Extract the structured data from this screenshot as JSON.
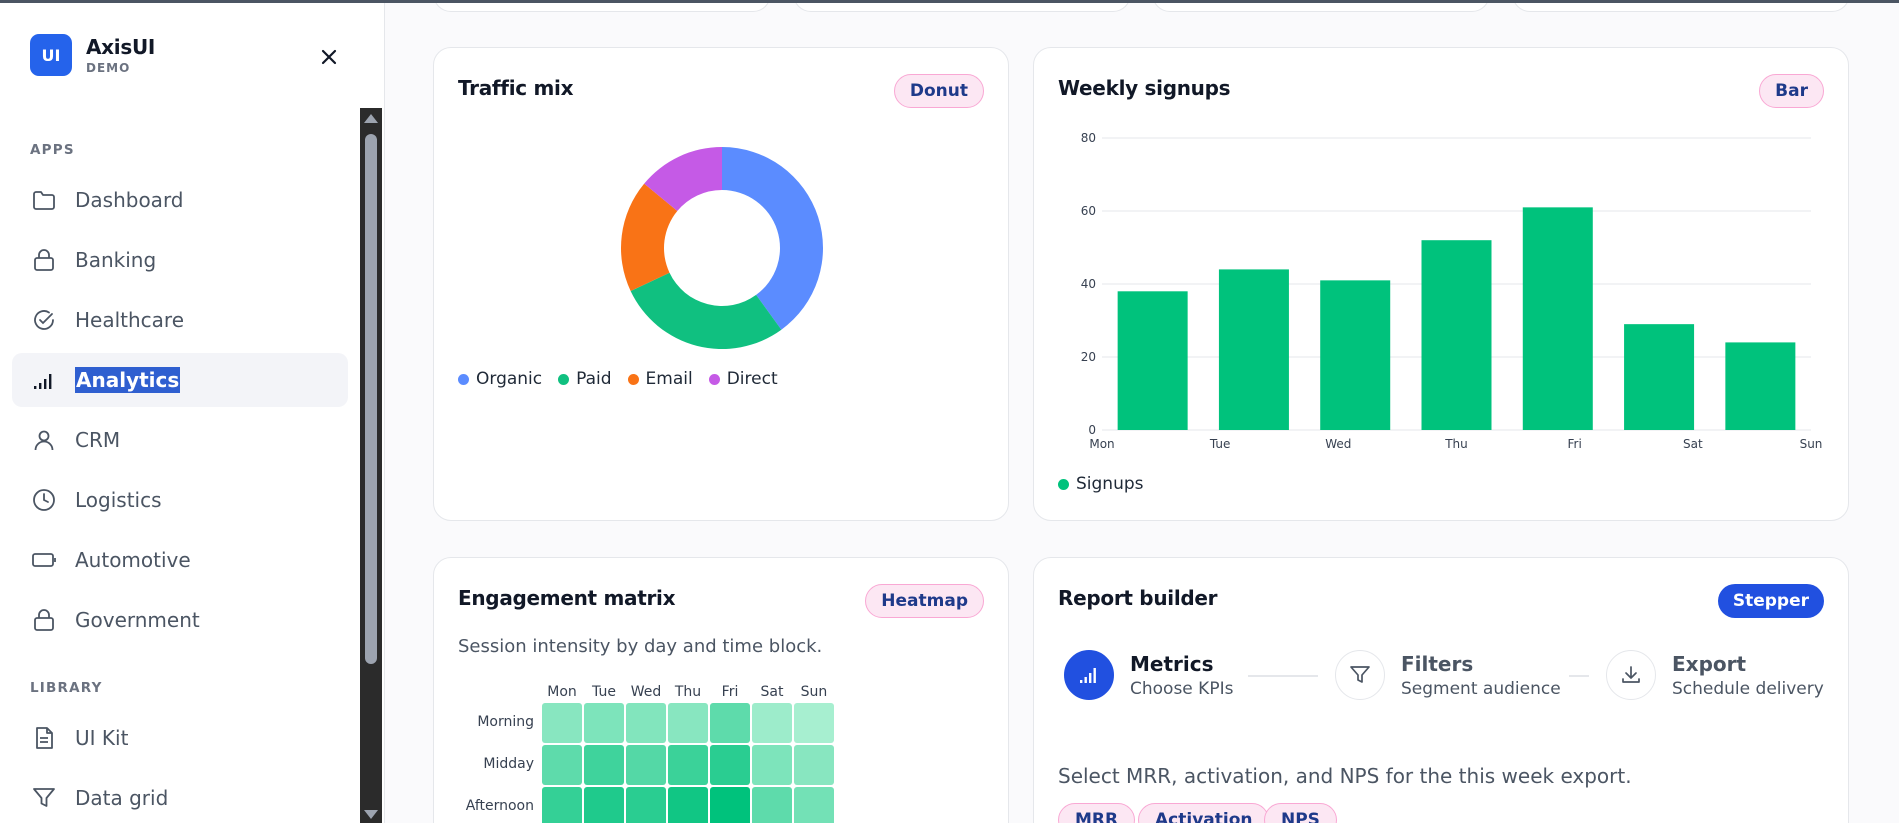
{
  "brand": {
    "logo": "UI",
    "name": "AxisUI",
    "sub": "DEMO"
  },
  "sidebar": {
    "apps_label": "APPS",
    "library_label": "LIBRARY",
    "apps": [
      {
        "label": "Dashboard",
        "icon": "folder-icon"
      },
      {
        "label": "Banking",
        "icon": "lock-icon"
      },
      {
        "label": "Healthcare",
        "icon": "check-circle-icon"
      },
      {
        "label": "Analytics",
        "icon": "signal-bars-icon",
        "active": true
      },
      {
        "label": "CRM",
        "icon": "user-icon"
      },
      {
        "label": "Logistics",
        "icon": "clock-icon"
      },
      {
        "label": "Automotive",
        "icon": "battery-icon"
      },
      {
        "label": "Government",
        "icon": "lock-icon"
      }
    ],
    "library": [
      {
        "label": "UI Kit",
        "icon": "document-icon"
      },
      {
        "label": "Data grid",
        "icon": "filter-icon"
      }
    ]
  },
  "traffic": {
    "title": "Traffic mix",
    "badge": "Donut",
    "chart_data": {
      "type": "pie",
      "slices": [
        {
          "name": "Organic",
          "value": 40,
          "color": "#5b8cff"
        },
        {
          "name": "Paid",
          "value": 28,
          "color": "#10c080"
        },
        {
          "name": "Email",
          "value": 18,
          "color": "#f97316"
        },
        {
          "name": "Direct",
          "value": 14,
          "color": "#c55ae6"
        }
      ]
    }
  },
  "signups": {
    "title": "Weekly signups",
    "badge": "Bar",
    "chart_data": {
      "type": "bar",
      "categories": [
        "Mon",
        "Tue",
        "Wed",
        "Thu",
        "Fri",
        "Sat",
        "Sun"
      ],
      "series": [
        {
          "name": "Signups",
          "values": [
            38,
            44,
            41,
            52,
            61,
            29,
            24
          ],
          "color": "#00c27c"
        }
      ],
      "ylim": [
        0,
        80
      ],
      "yticks": [
        0,
        20,
        40,
        60,
        80
      ],
      "grid": true,
      "legend": "bottom-left"
    }
  },
  "engagement": {
    "title": "Engagement matrix",
    "badge": "Heatmap",
    "subtitle": "Session intensity by day and time block.",
    "chart_data": {
      "type": "heatmap",
      "columns": [
        "Mon",
        "Tue",
        "Wed",
        "Thu",
        "Fri",
        "Sat",
        "Sun"
      ],
      "rows": [
        "Morning",
        "Midday",
        "Afternoon"
      ],
      "values": [
        [
          0.35,
          0.4,
          0.38,
          0.35,
          0.55,
          0.25,
          0.2
        ],
        [
          0.55,
          0.7,
          0.6,
          0.72,
          0.8,
          0.4,
          0.35
        ],
        [
          0.75,
          0.85,
          0.8,
          0.92,
          1.0,
          0.55,
          0.45
        ]
      ]
    }
  },
  "report": {
    "title": "Report builder",
    "badge": "Stepper",
    "steps": [
      {
        "title": "Metrics",
        "sub": "Choose KPIs",
        "icon": "signal-bars-icon",
        "active": true
      },
      {
        "title": "Filters",
        "sub": "Segment audience",
        "icon": "filter-icon"
      },
      {
        "title": "Export",
        "sub": "Schedule delivery",
        "icon": "download-icon"
      }
    ],
    "description": "Select MRR, activation, and NPS for the this week export.",
    "chips": [
      "MRR",
      "Activation",
      "NPS"
    ]
  },
  "colors": {
    "accent": "#2150e0",
    "bar": "#00c27c"
  }
}
